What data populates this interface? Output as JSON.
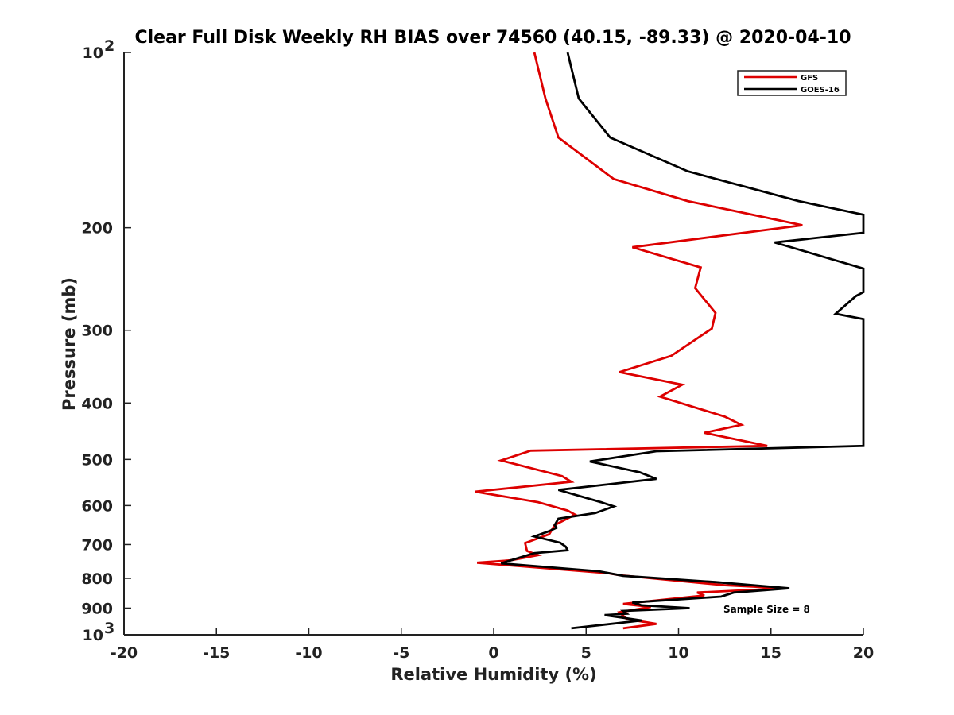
{
  "chart_data": {
    "type": "line",
    "title": "Clear Full Disk Weekly RH BIAS over 74560 (40.15, -89.33) @ 2020-04-10",
    "xlabel": "Relative Humidity (%)",
    "ylabel": "Pressure (mb)",
    "xlim": [
      -20,
      20
    ],
    "ylim": [
      100,
      1000
    ],
    "y_scale": "log",
    "y_reversed": true,
    "x_ticks": [
      "-20",
      "-15",
      "-10",
      "-5",
      "0",
      "5",
      "10",
      "15",
      "20"
    ],
    "y_tick_values": [
      100,
      200,
      300,
      400,
      500,
      600,
      700,
      800,
      900,
      1000
    ],
    "y_tick_labels": {
      "top_base": "10",
      "top_exp": "2",
      "mid": [
        "200",
        "300",
        "400",
        "500",
        "600",
        "700",
        "800",
        "900"
      ],
      "bottom_base": "10",
      "bottom_exp": "3"
    },
    "grid": false,
    "legend_position": "top-right",
    "annotation": "Sample Size = 8",
    "series": [
      {
        "name": "GFS",
        "color": "#dd0000",
        "points": [
          [
            2.2,
            100
          ],
          [
            2.8,
            120
          ],
          [
            3.5,
            140
          ],
          [
            6.5,
            165
          ],
          [
            10.5,
            180
          ],
          [
            16.7,
            198
          ],
          [
            7.5,
            216
          ],
          [
            11.2,
            234
          ],
          [
            10.9,
            254
          ],
          [
            12.0,
            280
          ],
          [
            11.8,
            298
          ],
          [
            9.6,
            332
          ],
          [
            6.8,
            354
          ],
          [
            10.2,
            372
          ],
          [
            9.0,
            390
          ],
          [
            12.5,
            422
          ],
          [
            13.4,
            436
          ],
          [
            11.4,
            450
          ],
          [
            14.8,
            474
          ],
          [
            2.0,
            483
          ],
          [
            0.4,
            502
          ],
          [
            3.7,
            534
          ],
          [
            4.2,
            546
          ],
          [
            -1.0,
            568
          ],
          [
            2.4,
            592
          ],
          [
            4.0,
            612
          ],
          [
            4.4,
            622
          ],
          [
            3.3,
            648
          ],
          [
            3.0,
            672
          ],
          [
            1.7,
            696
          ],
          [
            1.8,
            718
          ],
          [
            2.4,
            730
          ],
          [
            0.9,
            745
          ],
          [
            -0.9,
            752
          ],
          [
            6.2,
            784
          ],
          [
            6.8,
            790
          ],
          [
            12.5,
            822
          ],
          [
            15.8,
            832
          ],
          [
            11.0,
            846
          ],
          [
            11.4,
            856
          ],
          [
            7.0,
            885
          ],
          [
            8.5,
            896
          ],
          [
            6.8,
            915
          ],
          [
            7.2,
            940
          ],
          [
            8.8,
            958
          ],
          [
            7.0,
            975
          ]
        ]
      },
      {
        "name": "GOES-16",
        "color": "#000000",
        "points": [
          [
            4.0,
            100
          ],
          [
            4.6,
            120
          ],
          [
            6.3,
            140
          ],
          [
            10.5,
            160
          ],
          [
            16.5,
            180
          ],
          [
            20.0,
            190
          ],
          [
            20.0,
            204
          ],
          [
            15.2,
            212
          ],
          [
            20.0,
            235
          ],
          [
            20.0,
            258
          ],
          [
            19.6,
            262
          ],
          [
            18.5,
            281
          ],
          [
            20.0,
            287
          ],
          [
            20.0,
            474
          ],
          [
            8.8,
            484
          ],
          [
            5.2,
            504
          ],
          [
            7.9,
            526
          ],
          [
            8.8,
            540
          ],
          [
            3.5,
            564
          ],
          [
            5.8,
            592
          ],
          [
            6.5,
            602
          ],
          [
            5.5,
            618
          ],
          [
            3.5,
            632
          ],
          [
            3.3,
            648
          ],
          [
            3.4,
            655
          ],
          [
            3.0,
            664
          ],
          [
            2.2,
            678
          ],
          [
            3.6,
            695
          ],
          [
            3.9,
            706
          ],
          [
            4.0,
            716
          ],
          [
            2.2,
            724
          ],
          [
            0.4,
            754
          ],
          [
            5.7,
            778
          ],
          [
            7.0,
            792
          ],
          [
            12.0,
            812
          ],
          [
            16.0,
            832
          ],
          [
            13.0,
            846
          ],
          [
            12.3,
            860
          ],
          [
            7.5,
            880
          ],
          [
            8.0,
            890
          ],
          [
            10.6,
            900
          ],
          [
            7.0,
            910
          ],
          [
            7.2,
            920
          ],
          [
            6.0,
            925
          ],
          [
            8.0,
            945
          ],
          [
            4.2,
            975
          ]
        ]
      }
    ]
  }
}
